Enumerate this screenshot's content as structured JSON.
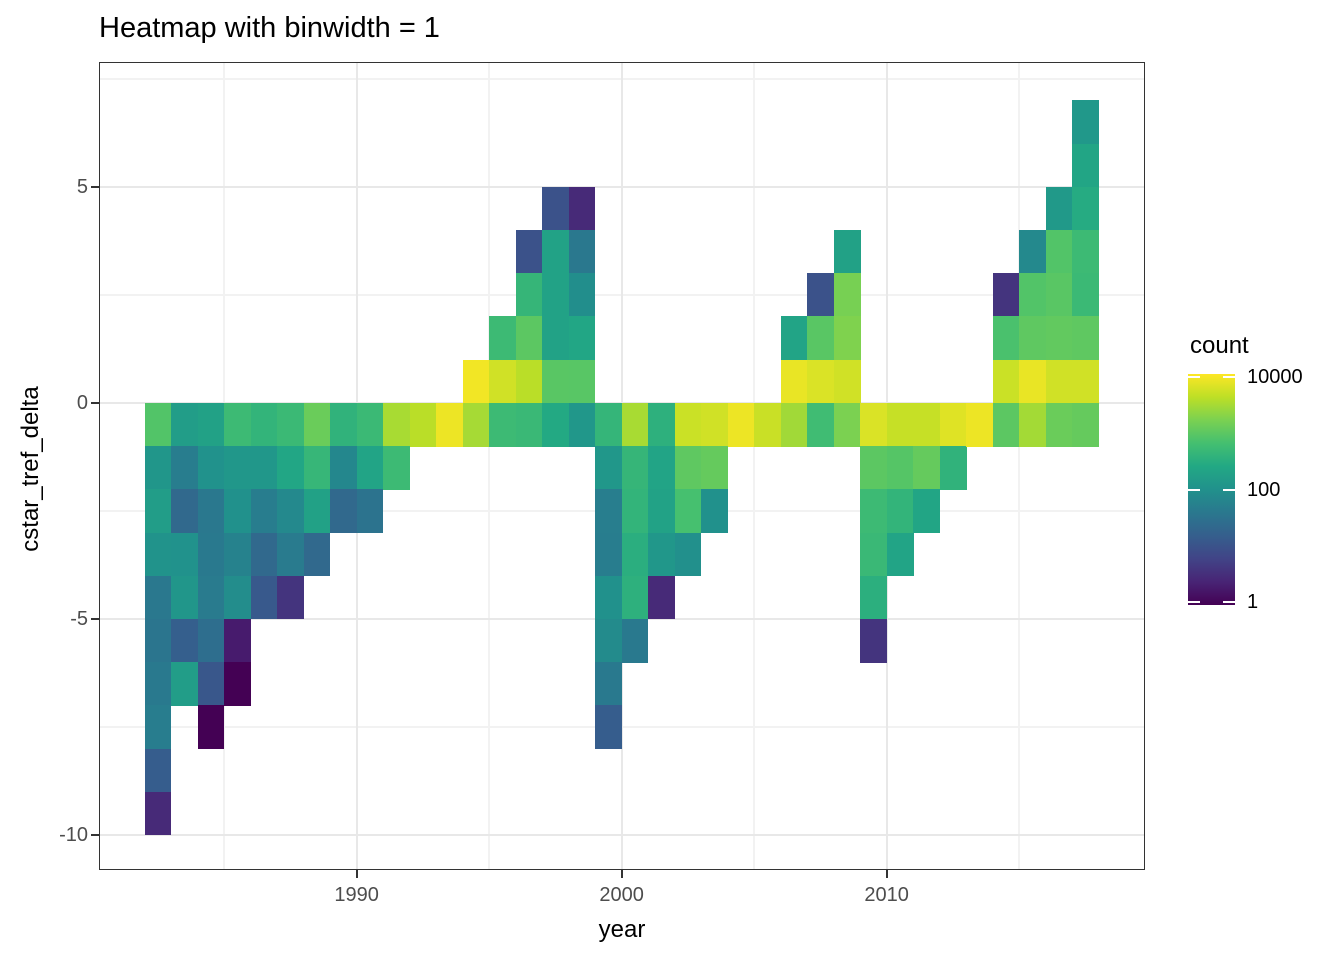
{
  "title": "Heatmap with binwidth = 1",
  "axes": {
    "x": {
      "label": "year",
      "major_ticks": [
        1990,
        2000,
        2010
      ],
      "minor_ticks": [
        1985,
        1995,
        2005,
        2015
      ],
      "domain": [
        1980.28,
        2019.75
      ]
    },
    "y": {
      "label": "cstar_tref_delta",
      "major_ticks": [
        5,
        0,
        -5,
        -10
      ],
      "minor_ticks": [
        7.5,
        2.5,
        -2.5,
        -7.5
      ],
      "domain": [
        -10.81,
        7.89
      ]
    }
  },
  "legend": {
    "title": "count",
    "scale": "log10",
    "domain": [
      1,
      10000
    ],
    "ticks": [
      {
        "value": 10000,
        "label": "10000"
      },
      {
        "value": 100,
        "label": "100"
      },
      {
        "value": 1,
        "label": "1"
      }
    ]
  },
  "colors": {
    "viridis": [
      "#440154",
      "#482475",
      "#414487",
      "#355f8d",
      "#2a788e",
      "#21918c",
      "#22a884",
      "#44bf70",
      "#7ad151",
      "#bddf26",
      "#fde725"
    ],
    "grid_major": "#e8e8e8",
    "grid_minor": "#f2f2f2",
    "panel_border": "#333333",
    "tick_label": "#4d4d4d",
    "text": "#000000"
  },
  "chart_data": {
    "type": "heatmap",
    "title": "Heatmap with binwidth = 1",
    "xlabel": "year",
    "ylabel": "cstar_tref_delta",
    "binwidth": 1,
    "x_bins": "year bins [y, y+1), 1982-2017",
    "y_bins": "delta bins [d, d+1), -10 to 6",
    "count_scale": "log10, 1 to 10000, viridis",
    "tiles": [
      [
        1982,
        -1,
        800
      ],
      [
        1982,
        -2,
        120
      ],
      [
        1982,
        -3,
        160
      ],
      [
        1982,
        -4,
        110
      ],
      [
        1982,
        -5,
        40
      ],
      [
        1982,
        -6,
        36
      ],
      [
        1982,
        -7,
        42
      ],
      [
        1982,
        -8,
        48
      ],
      [
        1982,
        -9,
        15
      ],
      [
        1982,
        -10,
        3
      ],
      [
        1983,
        -1,
        160
      ],
      [
        1983,
        -2,
        47
      ],
      [
        1983,
        -3,
        23
      ],
      [
        1983,
        -4,
        105
      ],
      [
        1983,
        -5,
        120
      ],
      [
        1983,
        -6,
        16
      ],
      [
        1983,
        -7,
        160
      ],
      [
        1984,
        -1,
        190
      ],
      [
        1984,
        -2,
        105
      ],
      [
        1984,
        -3,
        40
      ],
      [
        1984,
        -4,
        42
      ],
      [
        1984,
        -5,
        44
      ],
      [
        1984,
        -6,
        28
      ],
      [
        1984,
        -7,
        12
      ],
      [
        1984,
        -8,
        1
      ],
      [
        1985,
        -1,
        520
      ],
      [
        1985,
        -2,
        125
      ],
      [
        1985,
        -3,
        100
      ],
      [
        1985,
        -4,
        57
      ],
      [
        1985,
        -5,
        85
      ],
      [
        1985,
        -6,
        2
      ],
      [
        1985,
        -7,
        1
      ],
      [
        1986,
        -1,
        400
      ],
      [
        1986,
        -2,
        125
      ],
      [
        1986,
        -3,
        48
      ],
      [
        1986,
        -4,
        23
      ],
      [
        1986,
        -5,
        13
      ],
      [
        1987,
        -1,
        500
      ],
      [
        1987,
        -2,
        230
      ],
      [
        1987,
        -3,
        75
      ],
      [
        1987,
        -4,
        44
      ],
      [
        1987,
        -5,
        4
      ],
      [
        1988,
        -1,
        1200
      ],
      [
        1988,
        -2,
        440
      ],
      [
        1988,
        -3,
        190
      ],
      [
        1988,
        -4,
        23
      ],
      [
        1989,
        -1,
        380
      ],
      [
        1989,
        -2,
        70
      ],
      [
        1989,
        -3,
        23
      ],
      [
        1990,
        -1,
        500
      ],
      [
        1990,
        -2,
        210
      ],
      [
        1990,
        -3,
        33
      ],
      [
        1991,
        -1,
        3000
      ],
      [
        1991,
        -2,
        520
      ],
      [
        1992,
        -1,
        3800
      ],
      [
        1993,
        -1,
        8000
      ],
      [
        1994,
        0,
        8500
      ],
      [
        1994,
        -1,
        2900
      ],
      [
        1995,
        1,
        520
      ],
      [
        1995,
        0,
        5200
      ],
      [
        1995,
        -1,
        520
      ],
      [
        1996,
        3,
        10
      ],
      [
        1996,
        2,
        430
      ],
      [
        1996,
        1,
        950
      ],
      [
        1996,
        0,
        3800
      ],
      [
        1996,
        -1,
        480
      ],
      [
        1997,
        4,
        10
      ],
      [
        1997,
        3,
        200
      ],
      [
        1997,
        2,
        200
      ],
      [
        1997,
        1,
        200
      ],
      [
        1997,
        0,
        900
      ],
      [
        1997,
        -1,
        260
      ],
      [
        1998,
        4,
        3
      ],
      [
        1998,
        3,
        40
      ],
      [
        1998,
        2,
        90
      ],
      [
        1998,
        1,
        230
      ],
      [
        1998,
        0,
        880
      ],
      [
        1998,
        -1,
        125
      ],
      [
        1999,
        -1,
        420
      ],
      [
        1999,
        -2,
        125
      ],
      [
        1999,
        -3,
        50
      ],
      [
        1999,
        -4,
        48
      ],
      [
        1999,
        -5,
        100
      ],
      [
        1999,
        -6,
        80
      ],
      [
        1999,
        -7,
        42
      ],
      [
        1999,
        -8,
        15
      ],
      [
        2000,
        -1,
        3000
      ],
      [
        2000,
        -2,
        430
      ],
      [
        2000,
        -3,
        400
      ],
      [
        2000,
        -4,
        320
      ],
      [
        2000,
        -5,
        350
      ],
      [
        2000,
        -6,
        42
      ],
      [
        2001,
        -1,
        350
      ],
      [
        2001,
        -2,
        210
      ],
      [
        2001,
        -3,
        200
      ],
      [
        2001,
        -4,
        125
      ],
      [
        2001,
        -5,
        3
      ],
      [
        2002,
        -1,
        4800
      ],
      [
        2002,
        -2,
        1000
      ],
      [
        2002,
        -3,
        650
      ],
      [
        2002,
        -4,
        95
      ],
      [
        2003,
        -1,
        5200
      ],
      [
        2003,
        -2,
        1100
      ],
      [
        2003,
        -3,
        100
      ],
      [
        2004,
        -1,
        8000
      ],
      [
        2005,
        -1,
        4700
      ],
      [
        2006,
        1,
        210
      ],
      [
        2006,
        0,
        7500
      ],
      [
        2006,
        -1,
        2700
      ],
      [
        2007,
        2,
        10
      ],
      [
        2007,
        1,
        900
      ],
      [
        2007,
        0,
        6000
      ],
      [
        2007,
        -1,
        560
      ],
      [
        2008,
        3,
        190
      ],
      [
        2008,
        2,
        1500
      ],
      [
        2008,
        1,
        1700
      ],
      [
        2008,
        0,
        5200
      ],
      [
        2008,
        -1,
        1600
      ],
      [
        2009,
        -1,
        6000
      ],
      [
        2009,
        -2,
        950
      ],
      [
        2009,
        -3,
        520
      ],
      [
        2009,
        -4,
        480
      ],
      [
        2009,
        -5,
        330
      ],
      [
        2009,
        -6,
        4
      ],
      [
        2010,
        -1,
        4500
      ],
      [
        2010,
        -2,
        850
      ],
      [
        2010,
        -3,
        400
      ],
      [
        2010,
        -4,
        210
      ],
      [
        2011,
        -1,
        4500
      ],
      [
        2011,
        -2,
        1100
      ],
      [
        2011,
        -3,
        220
      ],
      [
        2012,
        -1,
        6500
      ],
      [
        2012,
        -2,
        380
      ],
      [
        2013,
        -1,
        8000
      ],
      [
        2014,
        2,
        4
      ],
      [
        2014,
        1,
        700
      ],
      [
        2014,
        0,
        4800
      ],
      [
        2014,
        -1,
        950
      ],
      [
        2015,
        3,
        75
      ],
      [
        2015,
        2,
        800
      ],
      [
        2015,
        1,
        1000
      ],
      [
        2015,
        0,
        7500
      ],
      [
        2015,
        -1,
        2800
      ],
      [
        2016,
        4,
        140
      ],
      [
        2016,
        3,
        800
      ],
      [
        2016,
        2,
        900
      ],
      [
        2016,
        1,
        1050
      ],
      [
        2016,
        0,
        5200
      ],
      [
        2016,
        -1,
        1200
      ],
      [
        2017,
        6,
        130
      ],
      [
        2017,
        5,
        220
      ],
      [
        2017,
        4,
        280
      ],
      [
        2017,
        3,
        520
      ],
      [
        2017,
        2,
        500
      ],
      [
        2017,
        1,
        1000
      ],
      [
        2017,
        0,
        5200
      ],
      [
        2017,
        -1,
        1100
      ]
    ]
  }
}
